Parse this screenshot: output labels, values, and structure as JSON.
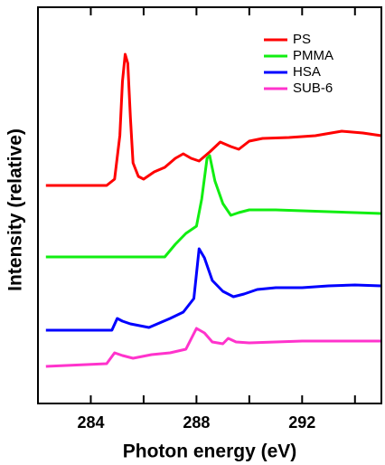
{
  "chart_data": {
    "type": "line",
    "x_label": "Photon energy (eV)",
    "y_label": "Intensity (relative)",
    "xlim": [
      282,
      295
    ],
    "ylim": [
      0,
      43.8
    ],
    "xticks": [
      284,
      288,
      292
    ],
    "xticks_minor": [
      286,
      290,
      294
    ],
    "legend": "upper right",
    "series": [
      {
        "name": "PS",
        "color": "#ff0000",
        "x": [
          282.3,
          284.6,
          284.9,
          285.1,
          285.2,
          285.3,
          285.4,
          285.5,
          285.6,
          285.8,
          286.0,
          286.4,
          286.8,
          287.2,
          287.5,
          287.8,
          288.1,
          288.5,
          288.9,
          289.3,
          289.6,
          290.0,
          290.5,
          291.5,
          292.5,
          293.5,
          294.3,
          295.0
        ],
        "values": [
          24.1,
          24.1,
          24.8,
          29.6,
          35.6,
          38.6,
          37.6,
          31.6,
          26.6,
          25.1,
          24.8,
          25.6,
          26.1,
          27.1,
          27.6,
          27.1,
          26.8,
          27.8,
          28.9,
          28.4,
          28.1,
          29.0,
          29.3,
          29.4,
          29.6,
          30.1,
          29.9,
          29.6
        ]
      },
      {
        "name": "PMMA",
        "color": "#11ee11",
        "x": [
          282.3,
          286.8,
          287.2,
          287.6,
          288.0,
          288.2,
          288.4,
          288.5,
          288.7,
          289.0,
          289.3,
          289.6,
          290.0,
          291.0,
          292.0,
          293.0,
          294.0,
          295.0
        ],
        "values": [
          16.2,
          16.2,
          17.6,
          18.8,
          19.6,
          22.6,
          27.1,
          27.4,
          24.6,
          22.1,
          20.8,
          21.1,
          21.4,
          21.4,
          21.3,
          21.2,
          21.1,
          21.0
        ]
      },
      {
        "name": "HSA",
        "color": "#0000ff",
        "x": [
          282.3,
          284.8,
          285.0,
          285.2,
          285.5,
          286.2,
          286.6,
          287.0,
          287.5,
          287.9,
          288.1,
          288.3,
          288.6,
          289.0,
          289.4,
          289.8,
          290.3,
          291.0,
          292.0,
          293.0,
          294.0,
          295.0
        ],
        "values": [
          8.1,
          8.1,
          9.4,
          9.1,
          8.8,
          8.4,
          8.9,
          9.4,
          10.1,
          11.6,
          17.1,
          16.1,
          13.6,
          12.4,
          11.8,
          12.1,
          12.6,
          12.8,
          12.8,
          13.0,
          13.1,
          13.0
        ]
      },
      {
        "name": "SUB-6",
        "color": "#ff33cc",
        "x": [
          282.3,
          284.6,
          284.9,
          285.2,
          285.6,
          286.3,
          287.0,
          287.6,
          288.0,
          288.3,
          288.6,
          289.0,
          289.2,
          289.5,
          290.0,
          291.0,
          292.0,
          293.0,
          294.0,
          295.0
        ],
        "values": [
          4.1,
          4.4,
          5.6,
          5.3,
          5.0,
          5.4,
          5.6,
          6.0,
          8.3,
          7.8,
          6.8,
          6.6,
          7.2,
          6.8,
          6.7,
          6.8,
          6.9,
          6.9,
          6.9,
          6.9
        ]
      }
    ]
  }
}
